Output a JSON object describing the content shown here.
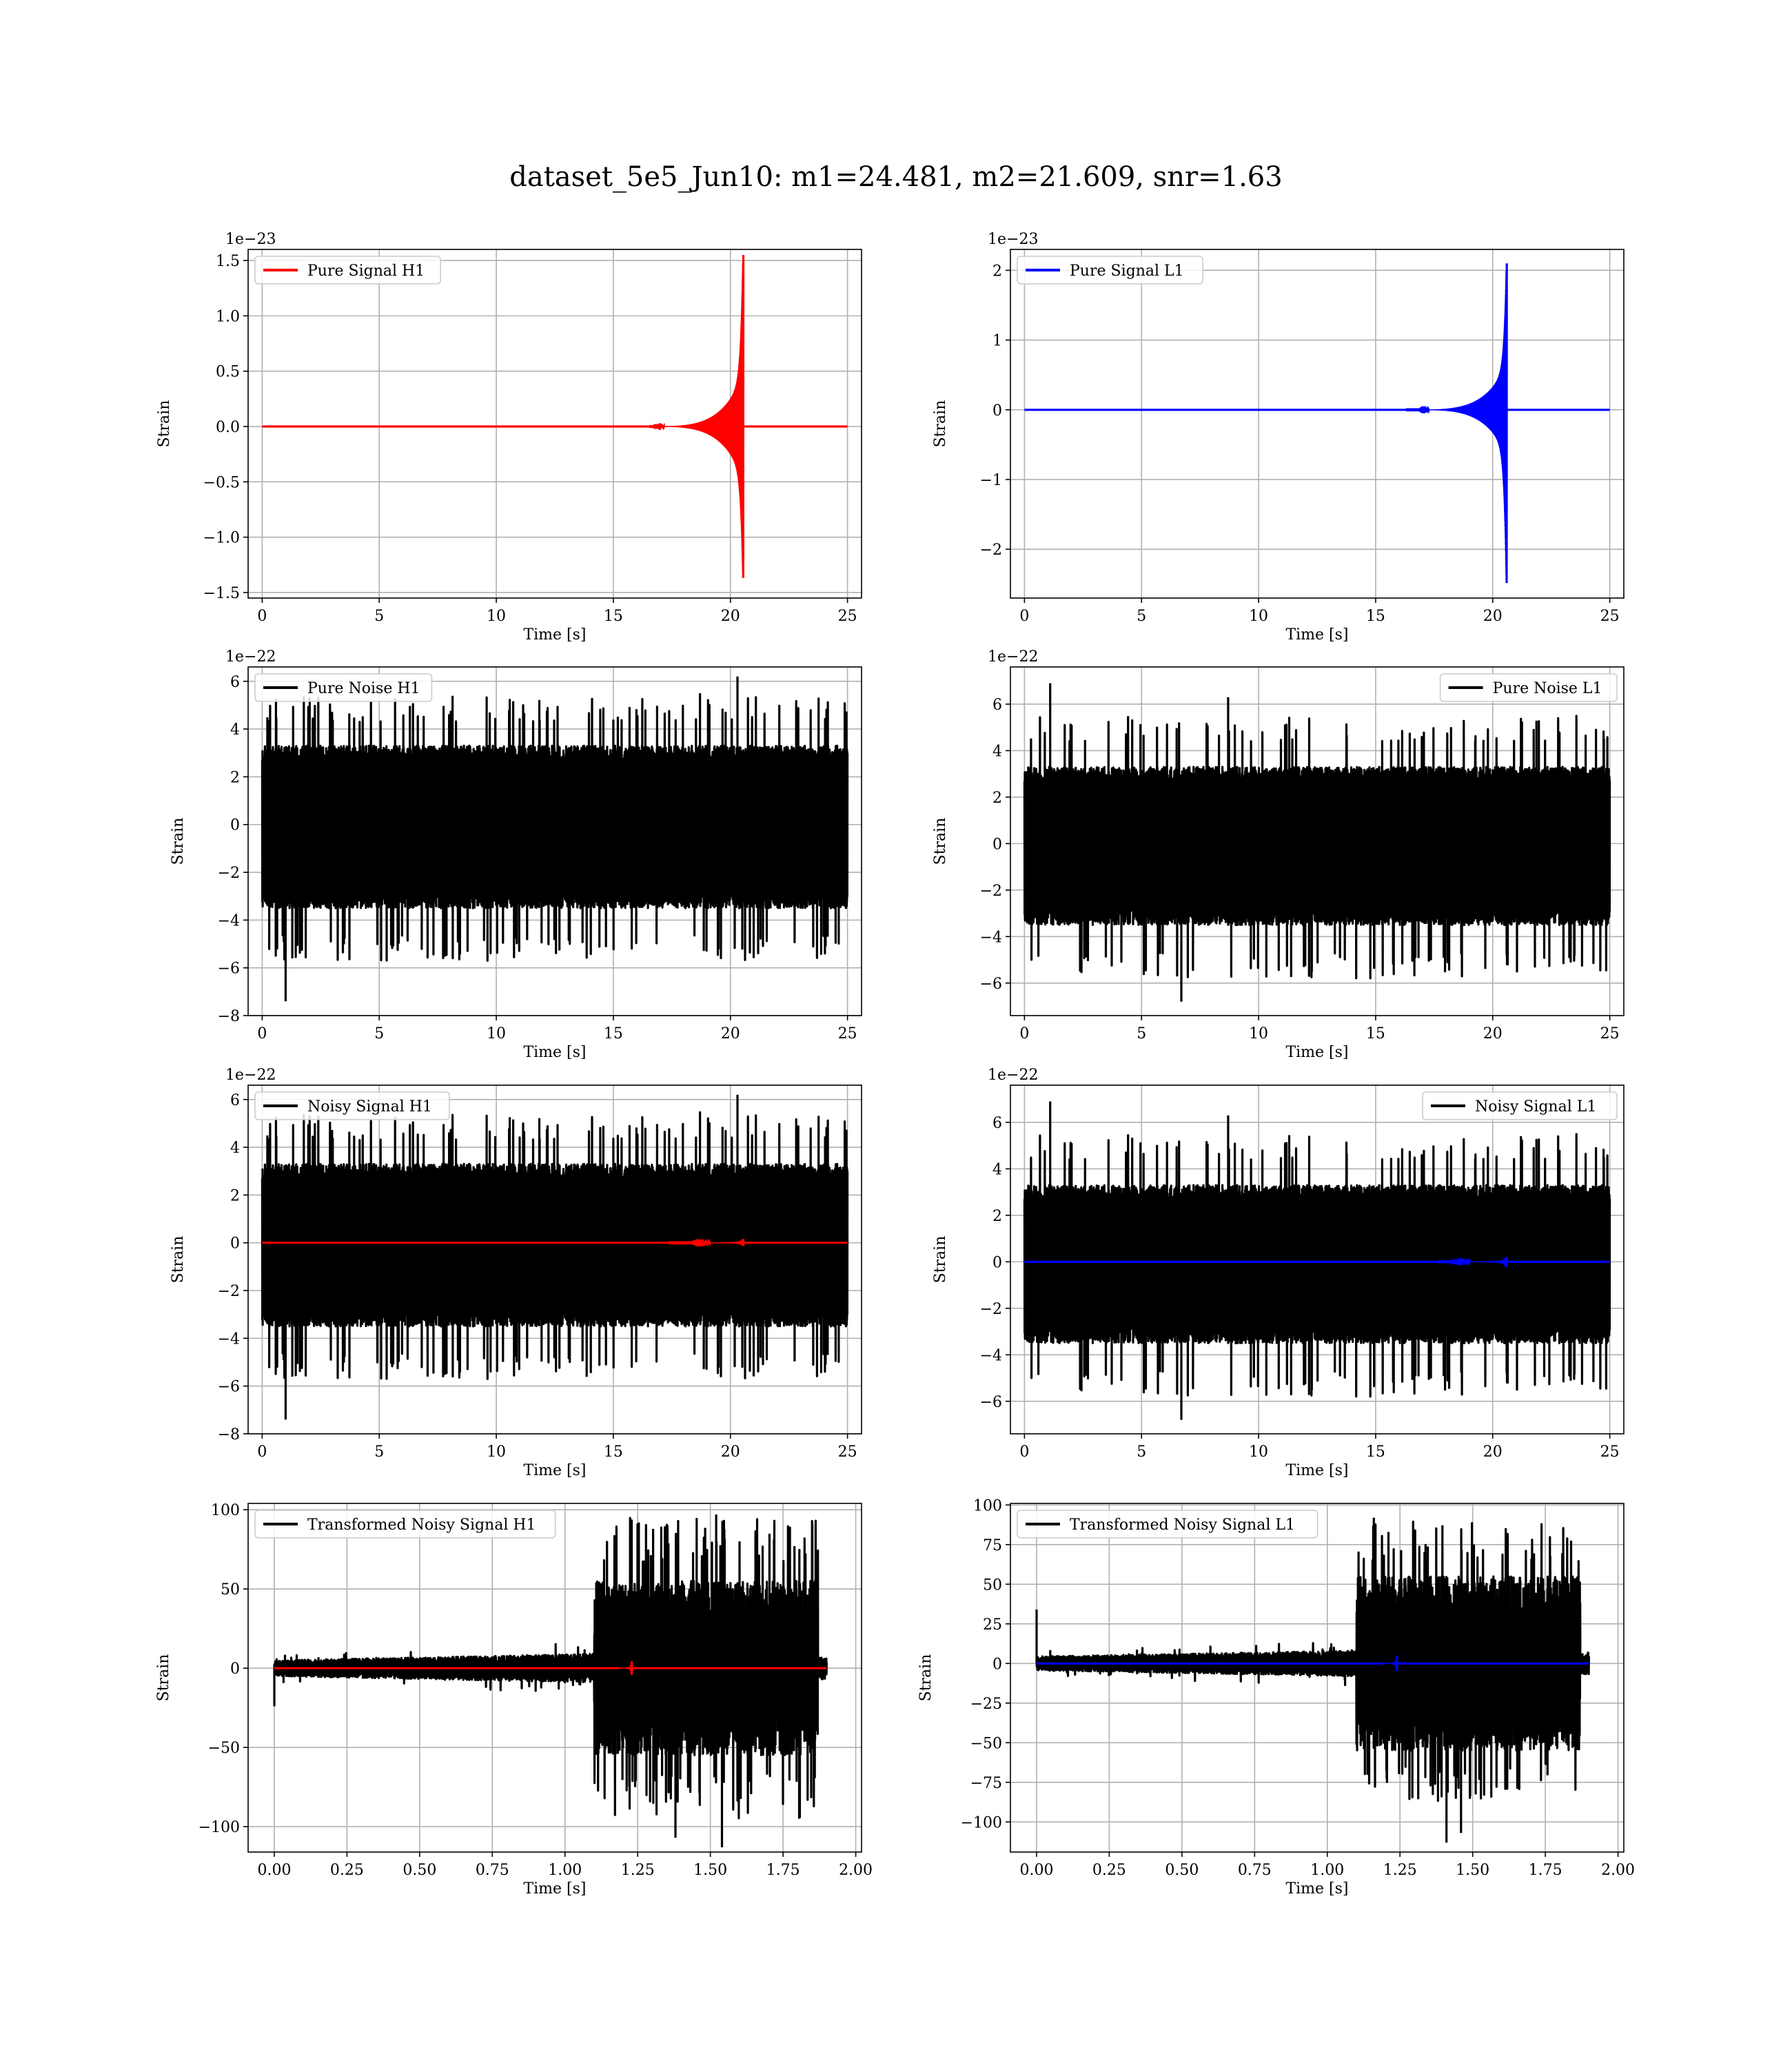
{
  "figure": {
    "title": "dataset_5e5_Jun10: m1=24.481, m2=21.609, snr=1.63"
  },
  "chart_data": [
    {
      "type": "line",
      "title": "",
      "xlabel": "Time [s]",
      "ylabel": "Strain",
      "offset_label": "1e−23",
      "xlim": [
        -0.6,
        25.6
      ],
      "ylim": [
        -1.55,
        1.6
      ],
      "xticks": [
        0,
        5,
        10,
        15,
        20,
        25
      ],
      "xtick_labels": [
        "0",
        "5",
        "10",
        "15",
        "20",
        "25"
      ],
      "yticks": [
        -1.5,
        -1.0,
        -0.5,
        0.0,
        0.5,
        1.0,
        1.5
      ],
      "ytick_labels": [
        "−1.5",
        "−1.0",
        "−0.5",
        "0.0",
        "0.5",
        "1.0",
        "1.5"
      ],
      "grid": true,
      "legend_position": "upper-left",
      "series": [
        {
          "name": "Pure Signal H1",
          "color": "#ff0000",
          "kind": "chirp",
          "x_start": 0,
          "x_end": 25,
          "t_merge": 20.55,
          "peak_pos": 1.55,
          "peak_neg": -1.4,
          "plateau": 0.45
        }
      ]
    },
    {
      "type": "line",
      "title": "",
      "xlabel": "Time [s]",
      "ylabel": "Strain",
      "offset_label": "1e−23",
      "xlim": [
        -0.6,
        25.6
      ],
      "ylim": [
        -2.7,
        2.3
      ],
      "xticks": [
        0,
        5,
        10,
        15,
        20,
        25
      ],
      "xtick_labels": [
        "0",
        "5",
        "10",
        "15",
        "20",
        "25"
      ],
      "yticks": [
        -2,
        -1,
        0,
        1,
        2
      ],
      "ytick_labels": [
        "−2",
        "−1",
        "0",
        "1",
        "2"
      ],
      "grid": true,
      "legend_position": "upper-left",
      "series": [
        {
          "name": "Pure Signal L1",
          "color": "#0000ff",
          "kind": "chirp",
          "x_start": 0,
          "x_end": 25,
          "t_merge": 20.6,
          "peak_pos": 2.1,
          "peak_neg": -2.55,
          "plateau": 0.62
        }
      ]
    },
    {
      "type": "line",
      "title": "",
      "xlabel": "Time [s]",
      "ylabel": "Strain",
      "offset_label": "1e−22",
      "xlim": [
        -0.6,
        25.6
      ],
      "ylim": [
        -8,
        6.6
      ],
      "xticks": [
        0,
        5,
        10,
        15,
        20,
        25
      ],
      "xtick_labels": [
        "0",
        "5",
        "10",
        "15",
        "20",
        "25"
      ],
      "yticks": [
        -8,
        -6,
        -4,
        -2,
        0,
        2,
        4,
        6
      ],
      "ytick_labels": [
        "−8",
        "−6",
        "−4",
        "−2",
        "0",
        "2",
        "4",
        "6"
      ],
      "grid": true,
      "legend_position": "upper-left",
      "series": [
        {
          "name": "Pure Noise H1",
          "color": "#000000",
          "kind": "noise",
          "x_start": 0,
          "x_end": 25,
          "band_top": 2.9,
          "band_bot": -3.1,
          "spike_up": 4.3,
          "spike_down": -4.6,
          "seed": 11,
          "extremes": [
            [
              1.0,
              -7.4
            ],
            [
              20.3,
              6.2
            ],
            [
              18.7,
              5.5
            ]
          ]
        }
      ]
    },
    {
      "type": "line",
      "title": "",
      "xlabel": "Time [s]",
      "ylabel": "Strain",
      "offset_label": "1e−22",
      "xlim": [
        -0.6,
        25.6
      ],
      "ylim": [
        -7.4,
        7.6
      ],
      "xticks": [
        0,
        5,
        10,
        15,
        20,
        25
      ],
      "xtick_labels": [
        "0",
        "5",
        "10",
        "15",
        "20",
        "25"
      ],
      "yticks": [
        -6,
        -4,
        -2,
        0,
        2,
        4,
        6
      ],
      "ytick_labels": [
        "−6",
        "−4",
        "−2",
        "0",
        "2",
        "4",
        "6"
      ],
      "grid": true,
      "legend_position": "upper-right",
      "series": [
        {
          "name": "Pure Noise L1",
          "color": "#000000",
          "kind": "noise",
          "x_start": 0,
          "x_end": 25,
          "band_top": 2.9,
          "band_bot": -3.1,
          "spike_up": 4.4,
          "spike_down": -4.7,
          "seed": 23,
          "extremes": [
            [
              1.1,
              6.9
            ],
            [
              6.7,
              -6.8
            ],
            [
              8.7,
              6.3
            ]
          ]
        }
      ]
    },
    {
      "type": "line",
      "title": "",
      "xlabel": "Time [s]",
      "ylabel": "Strain",
      "offset_label": "1e−22",
      "xlim": [
        -0.6,
        25.6
      ],
      "ylim": [
        -8,
        6.6
      ],
      "xticks": [
        0,
        5,
        10,
        15,
        20,
        25
      ],
      "xtick_labels": [
        "0",
        "5",
        "10",
        "15",
        "20",
        "25"
      ],
      "yticks": [
        -8,
        -6,
        -4,
        -2,
        0,
        2,
        4,
        6
      ],
      "ytick_labels": [
        "−8",
        "−6",
        "−4",
        "−2",
        "0",
        "2",
        "4",
        "6"
      ],
      "grid": true,
      "legend_position": "upper-left",
      "series": [
        {
          "name": "Noisy Signal H1",
          "color": "#000000",
          "kind": "noise",
          "x_start": 0,
          "x_end": 25,
          "band_top": 2.9,
          "band_bot": -3.1,
          "spike_up": 4.3,
          "spike_down": -4.6,
          "seed": 11,
          "extremes": [
            [
              1.0,
              -7.4
            ],
            [
              20.3,
              6.2
            ],
            [
              18.7,
              5.5
            ]
          ]
        },
        {
          "name": "",
          "color": "#ff0000",
          "kind": "chirp",
          "overlay": true,
          "x_start": 0,
          "x_end": 25,
          "t_merge": 20.55,
          "peak_pos": 0.16,
          "peak_neg": -0.14,
          "plateau": 0.05
        }
      ]
    },
    {
      "type": "line",
      "title": "",
      "xlabel": "Time [s]",
      "ylabel": "Strain",
      "offset_label": "1e−22",
      "xlim": [
        -0.6,
        25.6
      ],
      "ylim": [
        -7.4,
        7.6
      ],
      "xticks": [
        0,
        5,
        10,
        15,
        20,
        25
      ],
      "xtick_labels": [
        "0",
        "5",
        "10",
        "15",
        "20",
        "25"
      ],
      "yticks": [
        -6,
        -4,
        -2,
        0,
        2,
        4,
        6
      ],
      "ytick_labels": [
        "−6",
        "−4",
        "−2",
        "0",
        "2",
        "4",
        "6"
      ],
      "grid": true,
      "legend_position": "upper-right",
      "series": [
        {
          "name": "Noisy Signal L1",
          "color": "#000000",
          "kind": "noise",
          "x_start": 0,
          "x_end": 25,
          "band_top": 2.9,
          "band_bot": -3.1,
          "spike_up": 4.4,
          "spike_down": -4.7,
          "seed": 23,
          "extremes": [
            [
              1.1,
              6.9
            ],
            [
              6.7,
              -6.8
            ],
            [
              8.7,
              6.3
            ]
          ]
        },
        {
          "name": "",
          "color": "#0000ff",
          "kind": "chirp",
          "overlay": true,
          "x_start": 0,
          "x_end": 25,
          "t_merge": 20.6,
          "peak_pos": 0.21,
          "peak_neg": -0.25,
          "plateau": 0.06
        }
      ]
    },
    {
      "type": "line",
      "title": "",
      "xlabel": "Time [s]",
      "ylabel": "Strain",
      "offset_label": "",
      "xlim": [
        -0.09,
        2.02
      ],
      "ylim": [
        -116,
        104
      ],
      "xticks": [
        0.0,
        0.25,
        0.5,
        0.75,
        1.0,
        1.25,
        1.5,
        1.75,
        2.0
      ],
      "xtick_labels": [
        "0.00",
        "0.25",
        "0.50",
        "0.75",
        "1.00",
        "1.25",
        "1.50",
        "1.75",
        "2.00"
      ],
      "yticks": [
        -100,
        -50,
        0,
        50,
        100
      ],
      "ytick_labels": [
        "−100",
        "−50",
        "0",
        "50",
        "100"
      ],
      "grid": true,
      "legend_position": "upper-left",
      "series": [
        {
          "name": "Transformed Noisy Signal H1",
          "color": "#000000",
          "kind": "transformed",
          "x_start": 0,
          "x_end": 1.9,
          "t_jump": 1.1,
          "t_end": 1.87,
          "low_amp": 9,
          "high_amp": 55,
          "spike_high": 95,
          "seed": 37,
          "extremes": [
            [
              1.38,
              -107
            ],
            [
              1.54,
              -113
            ],
            [
              1.52,
              97
            ],
            [
              1.85,
              85
            ],
            [
              0.0,
              -24
            ]
          ]
        },
        {
          "name": "",
          "color": "#ff0000",
          "kind": "chirp",
          "overlay": true,
          "x_start": 0,
          "x_end": 1.9,
          "t_merge": 1.23,
          "peak_pos": 4.5,
          "peak_neg": -4.5,
          "plateau": 1.2
        }
      ]
    },
    {
      "type": "line",
      "title": "",
      "xlabel": "Time [s]",
      "ylabel": "Strain",
      "offset_label": "",
      "xlim": [
        -0.09,
        2.02
      ],
      "ylim": [
        -119,
        101
      ],
      "xticks": [
        0.0,
        0.25,
        0.5,
        0.75,
        1.0,
        1.25,
        1.5,
        1.75,
        2.0
      ],
      "xtick_labels": [
        "0.00",
        "0.25",
        "0.50",
        "0.75",
        "1.00",
        "1.25",
        "1.50",
        "1.75",
        "2.00"
      ],
      "yticks": [
        -100,
        -75,
        -50,
        -25,
        0,
        25,
        50,
        75,
        100
      ],
      "ytick_labels": [
        "−100",
        "−75",
        "−50",
        "−25",
        "0",
        "25",
        "50",
        "75",
        "100"
      ],
      "grid": true,
      "legend_position": "upper-left",
      "series": [
        {
          "name": "Transformed Noisy Signal L1",
          "color": "#000000",
          "kind": "transformed",
          "x_start": 0,
          "x_end": 1.9,
          "t_jump": 1.1,
          "t_end": 1.87,
          "low_amp": 8,
          "high_amp": 55,
          "spike_high": 90,
          "seed": 53,
          "extremes": [
            [
              1.41,
              -113
            ],
            [
              1.16,
              92
            ],
            [
              0.0,
              34
            ],
            [
              1.46,
              -107
            ]
          ]
        },
        {
          "name": "",
          "color": "#0000ff",
          "kind": "chirp",
          "overlay": true,
          "x_start": 0,
          "x_end": 1.9,
          "t_merge": 1.24,
          "peak_pos": 5,
          "peak_neg": -5,
          "plateau": 1.3
        }
      ]
    }
  ]
}
